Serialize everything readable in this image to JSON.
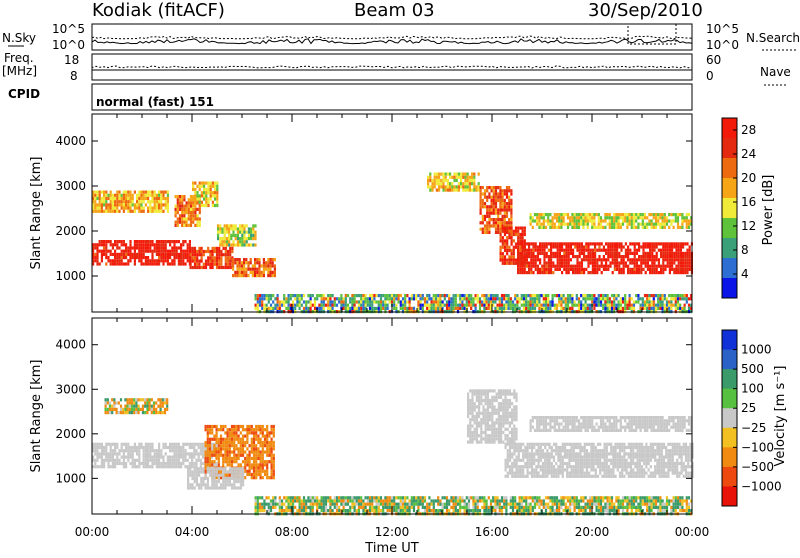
{
  "header": {
    "site": "Kodiak (fitACF)",
    "beam": "Beam 03",
    "date": "30/Sep/2010"
  },
  "status_panel": {
    "nsky_label": "N.Sky",
    "nsky_ticks": [
      "10^5",
      "10^0"
    ],
    "nsearch_label": "N.Search",
    "nsearch_ticks": [
      "10^5",
      "10^0"
    ],
    "freq_label": "Freq.",
    "freq_unit": "[MHz]",
    "freq_ticks": [
      "18",
      "8"
    ],
    "nave_label": "Nave",
    "nave_ticks": [
      "60",
      "0"
    ],
    "cpid_label": "CPID",
    "cpid_value": "normal (fast) 151"
  },
  "colors": {
    "power": [
      "#0a14e6",
      "#2d6ed2",
      "#3aa07a",
      "#5ec23a",
      "#f0ea38",
      "#f5a516",
      "#ee6a10",
      "#e52810",
      "#f21a08"
    ],
    "velocity": [
      "#1030d8",
      "#2a62c8",
      "#3a9a6a",
      "#58c040",
      "#c8c8c8",
      "#f2c020",
      "#f08a10",
      "#ee4a10",
      "#e81208"
    ],
    "ground_scatter": "#c0c0c0"
  },
  "chart_data": [
    {
      "type": "heatmap",
      "panel": "power",
      "ylabel": "Slant Range [km]",
      "y_ticks": [
        "1000",
        "2000",
        "3000",
        "4000"
      ],
      "ylim": [
        200,
        4600
      ],
      "x_ticks": [
        "00:00",
        "04:00",
        "08:00",
        "12:00",
        "16:00",
        "20:00",
        "00:00"
      ],
      "xlim": [
        0,
        24
      ],
      "colorbar": {
        "label": "Power [dB]",
        "ticks": [
          "4",
          "8",
          "12",
          "16",
          "20",
          "24",
          "28"
        ],
        "range": [
          0,
          30
        ]
      },
      "regions": [
        {
          "t0": 0.0,
          "t1": 3.9,
          "r0": 1250,
          "r1": 1800,
          "level": 28
        },
        {
          "t0": 3.9,
          "t1": 5.6,
          "r0": 1200,
          "r1": 1650,
          "level": 25
        },
        {
          "t0": 5.6,
          "t1": 7.3,
          "r0": 1000,
          "r1": 1400,
          "level": 22
        },
        {
          "t0": 0.0,
          "t1": 3.0,
          "r0": 2450,
          "r1": 2900,
          "level": 18
        },
        {
          "t0": 3.3,
          "t1": 4.3,
          "r0": 2100,
          "r1": 2800,
          "level": 20
        },
        {
          "t0": 4.0,
          "t1": 5.0,
          "r0": 2600,
          "r1": 3100,
          "level": 17
        },
        {
          "t0": 5.0,
          "t1": 6.5,
          "r0": 1700,
          "r1": 2150,
          "level": 14
        },
        {
          "t0": 13.4,
          "t1": 15.5,
          "r0": 2900,
          "r1": 3300,
          "level": 16
        },
        {
          "t0": 15.5,
          "t1": 16.8,
          "r0": 2000,
          "r1": 3000,
          "level": 23
        },
        {
          "t0": 16.3,
          "t1": 17.3,
          "r0": 1300,
          "r1": 2100,
          "level": 26
        },
        {
          "t0": 17.0,
          "t1": 24.0,
          "r0": 1050,
          "r1": 1750,
          "level": 28
        },
        {
          "t0": 17.5,
          "t1": 24.0,
          "r0": 2100,
          "r1": 2400,
          "level": 15
        },
        {
          "t0": 6.5,
          "t1": 24.0,
          "r0": 200,
          "r1": 600,
          "level": 10
        }
      ]
    },
    {
      "type": "heatmap",
      "panel": "velocity",
      "ylabel": "Slant Range [km]",
      "y_ticks": [
        "1000",
        "2000",
        "3000",
        "4000"
      ],
      "ylim": [
        200,
        4600
      ],
      "x_ticks": [
        "00:00",
        "04:00",
        "08:00",
        "12:00",
        "16:00",
        "20:00",
        "00:00"
      ],
      "xlim": [
        0,
        24
      ],
      "xlabel": "Time UT",
      "colorbar": {
        "label": "Velocity [m s⁻¹]",
        "ticks": [
          "1000",
          "500",
          "100",
          "25",
          "−25",
          "−100",
          "−500",
          "−1000"
        ],
        "range": [
          -1250,
          1250
        ]
      },
      "regions": [
        {
          "t0": 0.0,
          "t1": 5.0,
          "r0": 1250,
          "r1": 1800,
          "level": 0
        },
        {
          "t0": 4.5,
          "t1": 7.3,
          "r0": 1050,
          "r1": 2200,
          "level": -400
        },
        {
          "t0": 3.8,
          "t1": 6.0,
          "r0": 800,
          "r1": 1250,
          "level": 0
        },
        {
          "t0": 0.5,
          "t1": 3.0,
          "r0": 2450,
          "r1": 2800,
          "level": -80
        },
        {
          "t0": 15.0,
          "t1": 17.0,
          "r0": 1800,
          "r1": 3000,
          "level": 0
        },
        {
          "t0": 16.5,
          "t1": 24.0,
          "r0": 1050,
          "r1": 1800,
          "level": 0
        },
        {
          "t0": 17.5,
          "t1": 24.0,
          "r0": 2100,
          "r1": 2400,
          "level": 0
        },
        {
          "t0": 6.5,
          "t1": 24.0,
          "r0": 200,
          "r1": 600,
          "level": 60
        }
      ]
    }
  ]
}
